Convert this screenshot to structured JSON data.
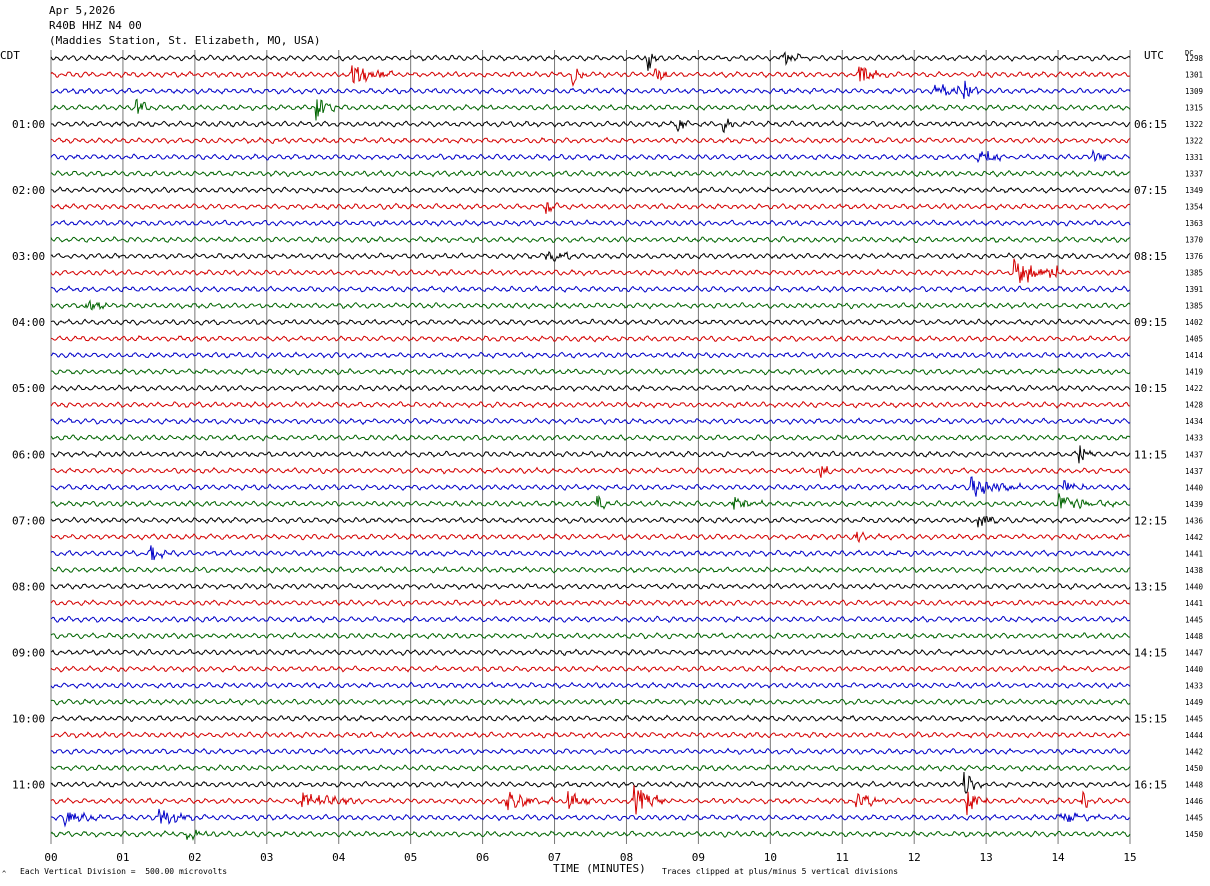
{
  "header": {
    "date": "Apr 5,2026",
    "station": "R40B HHZ N4 00",
    "location": "(Maddies Station, St. Elizabeth, MO, USA)"
  },
  "left_zone_label": "CDT",
  "right_zone_label": "UTC",
  "dc_label": "DC",
  "footer": {
    "scale_text": "Each Vertical Division =  500.00 microvolts",
    "clip_text": "Traces clipped at plus/minus 5 vertical divisions",
    "corner_mark": "^"
  },
  "colors": {
    "trace_cycle": [
      "#000000",
      "#d40000",
      "#0000c8",
      "#006400"
    ],
    "grid": "#777777"
  },
  "chart_data": {
    "type": "line",
    "title": "",
    "xlabel": "TIME (MINUTES)",
    "xlim": [
      0,
      15
    ],
    "x_ticks": [
      "00",
      "01",
      "02",
      "03",
      "04",
      "05",
      "06",
      "07",
      "08",
      "09",
      "10",
      "11",
      "12",
      "13",
      "14",
      "15"
    ],
    "cdt_hour_labels": [
      "01:00",
      "02:00",
      "03:00",
      "04:00",
      "05:00",
      "06:00",
      "07:00",
      "08:00",
      "09:00",
      "10:00",
      "11:00"
    ],
    "utc_hour_labels": [
      "06:15",
      "07:15",
      "08:15",
      "09:15",
      "10:15",
      "11:15",
      "12:15",
      "13:15",
      "14:15",
      "15:15",
      "16:15"
    ],
    "rows_per_hour": 4,
    "first_hour_row": 4,
    "dc_offsets": [
      1298,
      1301,
      1309,
      1315,
      1322,
      1322,
      1331,
      1337,
      1349,
      1354,
      1363,
      1370,
      1376,
      1385,
      1391,
      1385,
      1402,
      1405,
      1414,
      1419,
      1422,
      1428,
      1434,
      1433,
      1437,
      1437,
      1440,
      1439,
      1436,
      1442,
      1441,
      1438,
      1440,
      1441,
      1445,
      1448,
      1447,
      1440,
      1433,
      1449,
      1445,
      1444,
      1442,
      1450,
      1448,
      1446,
      1445,
      1450
    ],
    "events": [
      {
        "row": 0,
        "minute": 8.3,
        "amp": 14,
        "len": 0.15
      },
      {
        "row": 0,
        "minute": 10.2,
        "amp": 8,
        "len": 0.3
      },
      {
        "row": 1,
        "minute": 4.2,
        "amp": 16,
        "len": 0.6
      },
      {
        "row": 1,
        "minute": 7.25,
        "amp": 12,
        "len": 0.2
      },
      {
        "row": 1,
        "minute": 8.4,
        "amp": 10,
        "len": 0.2
      },
      {
        "row": 1,
        "minute": 11.25,
        "amp": 11,
        "len": 0.4
      },
      {
        "row": 2,
        "minute": 12.3,
        "amp": 10,
        "len": 0.6
      },
      {
        "row": 2,
        "minute": 12.7,
        "amp": 12,
        "len": 0.2
      },
      {
        "row": 3,
        "minute": 1.2,
        "amp": 10,
        "len": 0.2
      },
      {
        "row": 3,
        "minute": 3.7,
        "amp": 12,
        "len": 0.3
      },
      {
        "row": 4,
        "minute": 8.7,
        "amp": 9,
        "len": 0.2
      },
      {
        "row": 4,
        "minute": 9.35,
        "amp": 10,
        "len": 0.15
      },
      {
        "row": 6,
        "minute": 12.9,
        "amp": 7,
        "len": 0.5
      },
      {
        "row": 6,
        "minute": 14.5,
        "amp": 8,
        "len": 0.3
      },
      {
        "row": 9,
        "minute": 6.9,
        "amp": 9,
        "len": 0.15
      },
      {
        "row": 12,
        "minute": 6.9,
        "amp": 9,
        "len": 0.4
      },
      {
        "row": 13,
        "minute": 13.4,
        "amp": 14,
        "len": 0.6
      },
      {
        "row": 13,
        "minute": 13.9,
        "amp": 12,
        "len": 0.2
      },
      {
        "row": 15,
        "minute": 0.5,
        "amp": 9,
        "len": 0.3
      },
      {
        "row": 24,
        "minute": 14.3,
        "amp": 12,
        "len": 0.25
      },
      {
        "row": 25,
        "minute": 10.7,
        "amp": 11,
        "len": 0.15
      },
      {
        "row": 26,
        "minute": 12.8,
        "amp": 10,
        "len": 0.7
      },
      {
        "row": 26,
        "minute": 14.1,
        "amp": 8,
        "len": 0.4
      },
      {
        "row": 27,
        "minute": 7.6,
        "amp": 10,
        "len": 0.2
      },
      {
        "row": 27,
        "minute": 9.5,
        "amp": 8,
        "len": 0.4
      },
      {
        "row": 27,
        "minute": 14.0,
        "amp": 9,
        "len": 0.8
      },
      {
        "row": 28,
        "minute": 12.9,
        "amp": 9,
        "len": 0.3
      },
      {
        "row": 29,
        "minute": 11.2,
        "amp": 8,
        "len": 0.2
      },
      {
        "row": 30,
        "minute": 1.4,
        "amp": 8,
        "len": 0.3
      },
      {
        "row": 44,
        "minute": 12.7,
        "amp": 14,
        "len": 0.3
      },
      {
        "row": 45,
        "minute": 3.5,
        "amp": 8,
        "len": 0.9
      },
      {
        "row": 45,
        "minute": 6.3,
        "amp": 11,
        "len": 0.7
      },
      {
        "row": 45,
        "minute": 7.2,
        "amp": 12,
        "len": 0.3
      },
      {
        "row": 45,
        "minute": 8.1,
        "amp": 16,
        "len": 0.5
      },
      {
        "row": 45,
        "minute": 11.2,
        "amp": 11,
        "len": 0.4
      },
      {
        "row": 45,
        "minute": 12.75,
        "amp": 16,
        "len": 0.3
      },
      {
        "row": 45,
        "minute": 14.35,
        "amp": 10,
        "len": 0.2
      },
      {
        "row": 46,
        "minute": 0.2,
        "amp": 9,
        "len": 0.5
      },
      {
        "row": 46,
        "minute": 1.5,
        "amp": 10,
        "len": 0.5
      },
      {
        "row": 46,
        "minute": 14.0,
        "amp": 8,
        "len": 0.6
      },
      {
        "row": 47,
        "minute": 1.9,
        "amp": 7,
        "len": 0.4
      }
    ]
  }
}
